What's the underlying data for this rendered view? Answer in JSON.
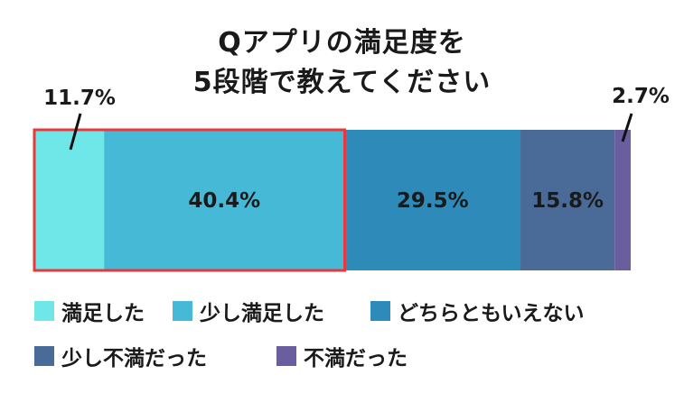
{
  "title_line1": "Qアプリの満足度を",
  "title_line2": "5段階で教えてください",
  "chart_data": {
    "type": "bar",
    "orientation": "horizontal-stacked-100",
    "series": [
      {
        "name": "満足した",
        "value": 11.7,
        "label": "11.7%",
        "color": "#6fe6e8"
      },
      {
        "name": "少し満足した",
        "value": 40.4,
        "label": "40.4%",
        "color": "#45b9d6"
      },
      {
        "name": "どちらともいえない",
        "value": 29.5,
        "label": "29.5%",
        "color": "#2e8bb9"
      },
      {
        "name": "少し不満だった",
        "value": 15.8,
        "label": "15.8%",
        "color": "#4a6b98"
      },
      {
        "name": "不満だった",
        "value": 2.7,
        "label": "2.7%",
        "color": "#6b5e9e"
      }
    ],
    "highlight_color": "#e8383d"
  }
}
